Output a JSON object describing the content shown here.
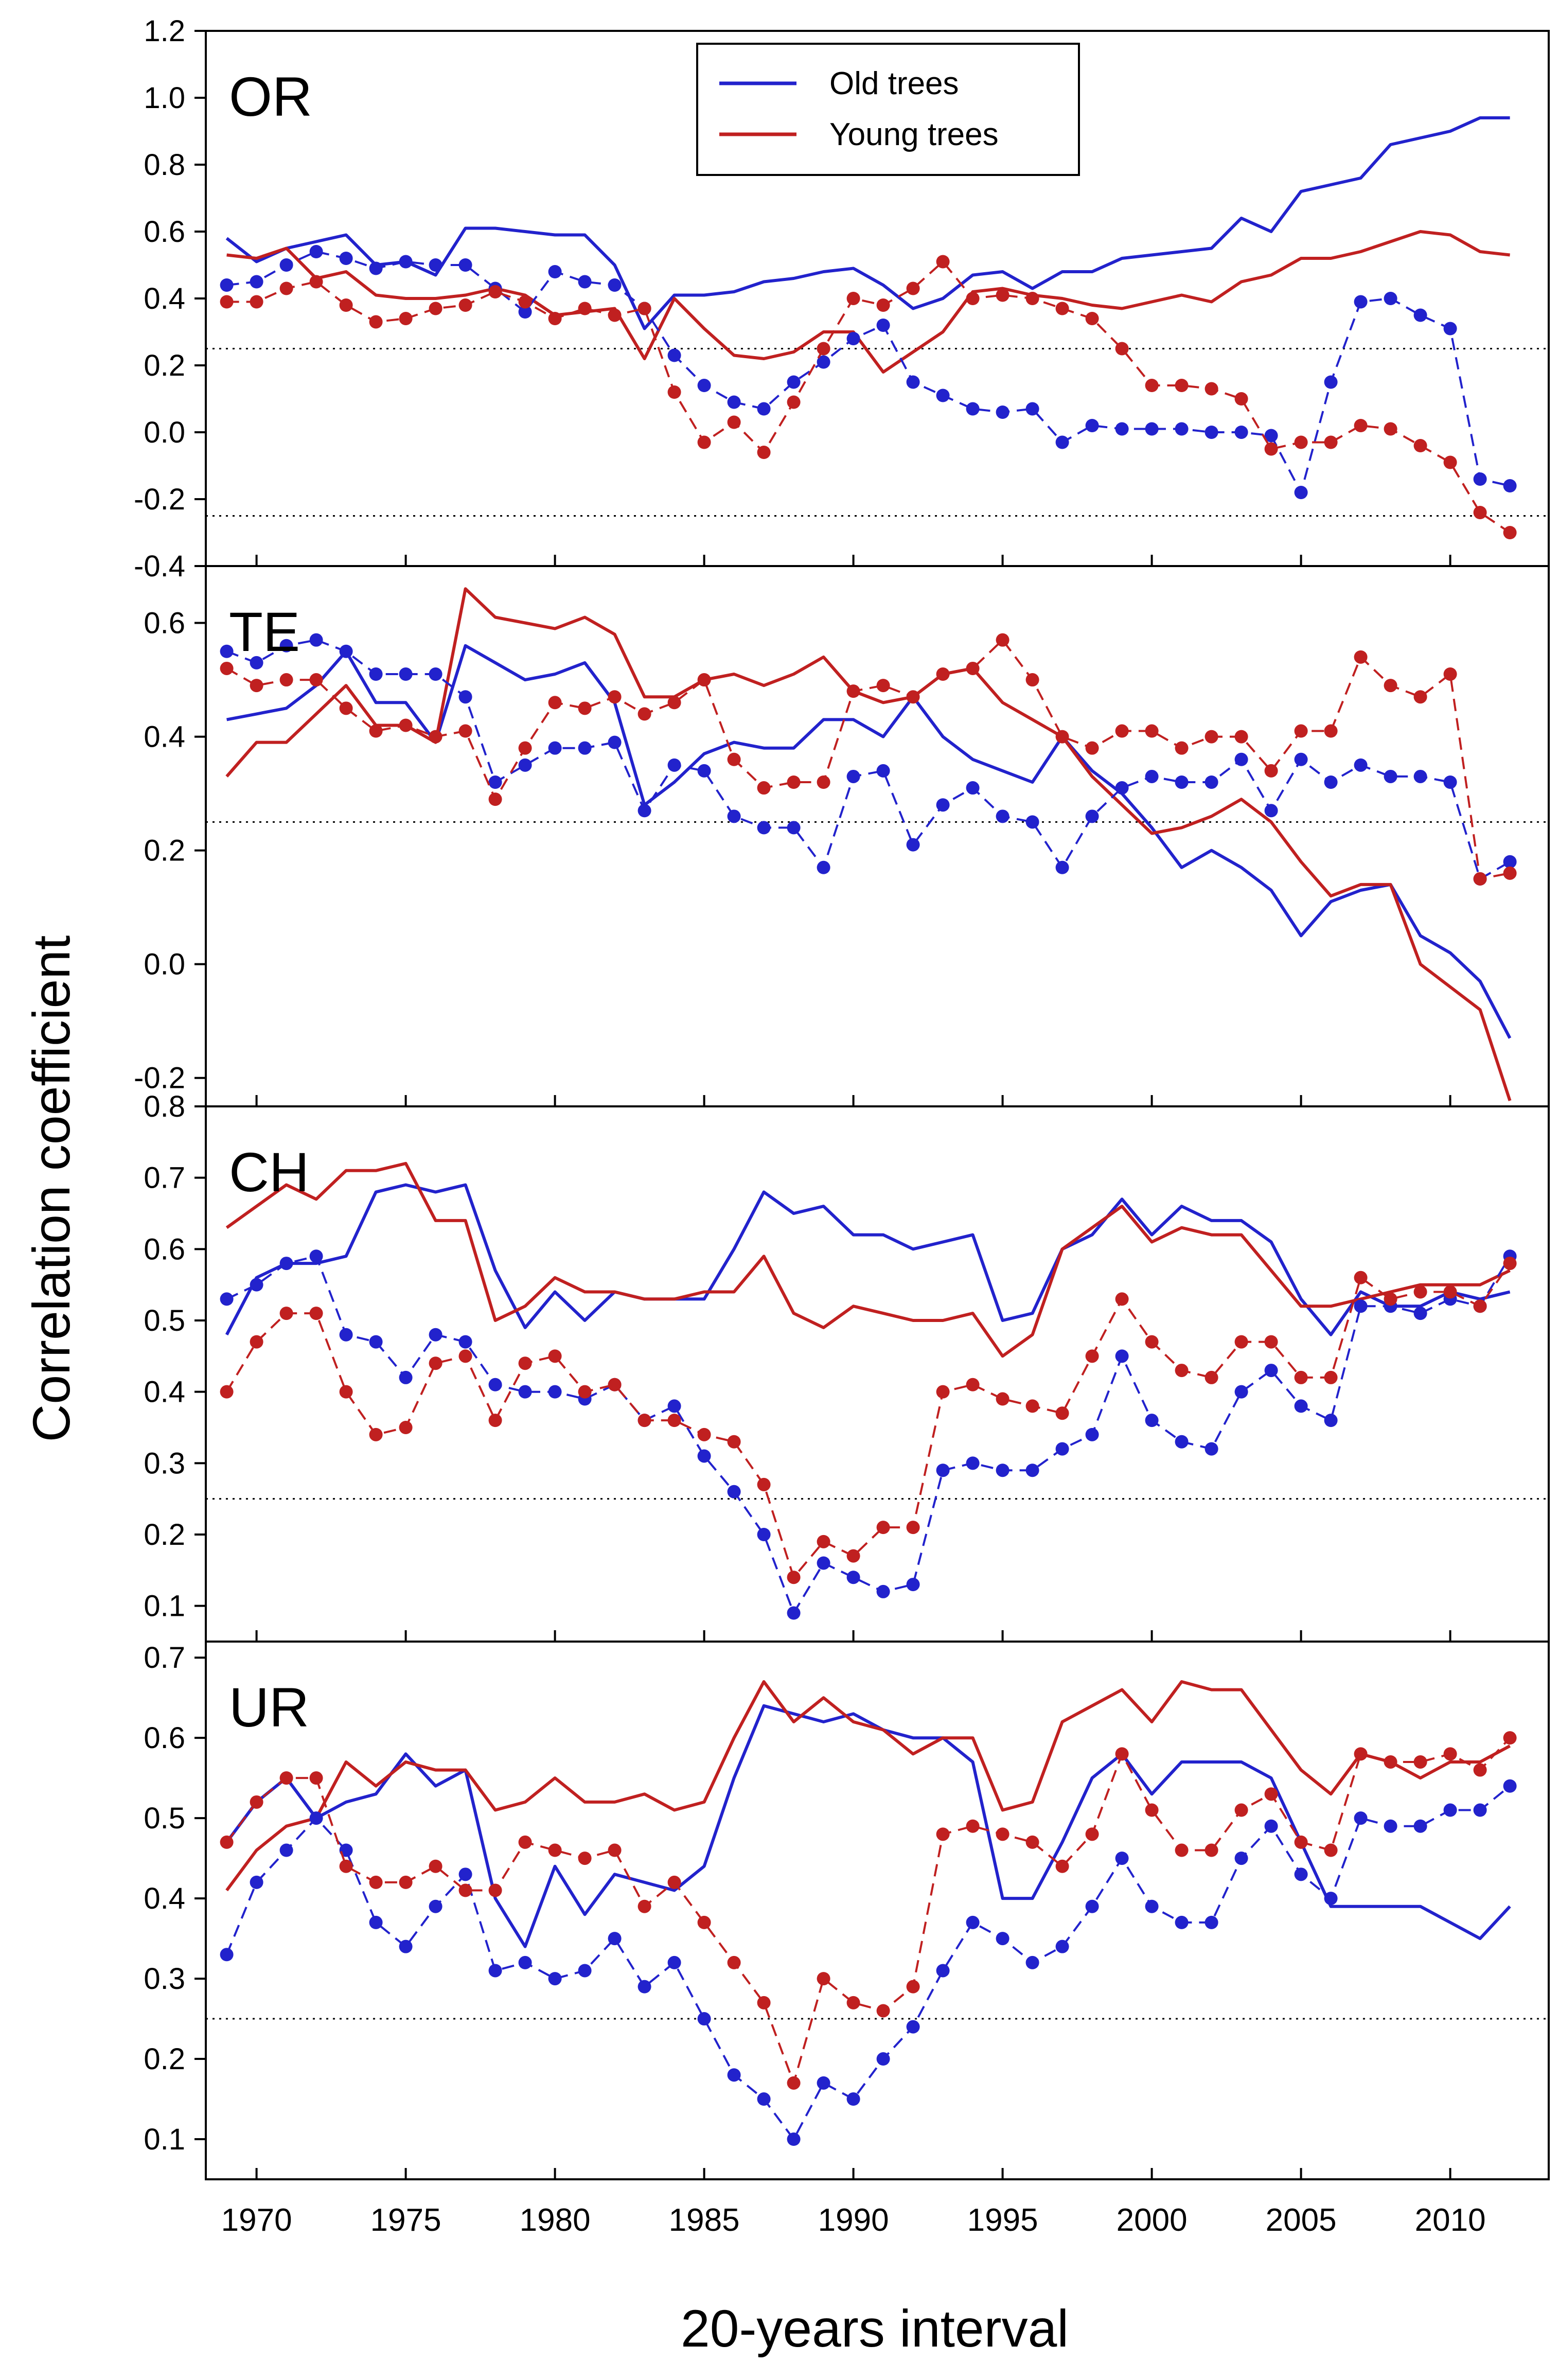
{
  "figure": {
    "ylabel": "Correlation coefficient",
    "xlabel": "20-years interval",
    "x_ticks": [
      1970,
      1975,
      1980,
      1985,
      1990,
      1995,
      2000,
      2005,
      2010
    ],
    "xlim": [
      1968.3,
      2013.3
    ],
    "threshold_lines": [
      0.25,
      -0.25
    ],
    "legend": [
      {
        "name": "Old trees",
        "color": "#2222cc"
      },
      {
        "name": "Young trees",
        "color": "#c02020"
      }
    ],
    "colors": {
      "old": "#2222cc",
      "young": "#c02020",
      "threshold": "#000000"
    }
  },
  "chart_data": [
    {
      "type": "line",
      "panel": "OR",
      "ylim": [
        -0.4,
        1.2
      ],
      "y_ticks": [
        -0.4,
        -0.2,
        0.0,
        0.2,
        0.4,
        0.6,
        0.8,
        1.0,
        1.2
      ],
      "y_tick_labels": [
        "-0.4",
        "-0.2",
        "0.0",
        "0.2",
        "0.4",
        "0.6",
        "0.8",
        "1.0",
        "1.2"
      ],
      "x": [
        1969,
        1970,
        1971,
        1972,
        1973,
        1974,
        1975,
        1976,
        1977,
        1978,
        1979,
        1980,
        1981,
        1982,
        1983,
        1984,
        1985,
        1986,
        1987,
        1988,
        1989,
        1990,
        1991,
        1992,
        1993,
        1994,
        1995,
        1996,
        1997,
        1998,
        1999,
        2000,
        2001,
        2002,
        2003,
        2004,
        2005,
        2006,
        2007,
        2008,
        2009,
        2010,
        2011,
        2012
      ],
      "series": [
        {
          "name": "Old trees solid",
          "group": "old",
          "style": "solid",
          "values": [
            0.58,
            0.51,
            0.55,
            0.57,
            0.59,
            0.5,
            0.51,
            0.47,
            0.61,
            0.61,
            0.6,
            0.59,
            0.59,
            0.5,
            0.31,
            0.41,
            0.41,
            0.42,
            0.45,
            0.46,
            0.48,
            0.49,
            0.44,
            0.37,
            0.4,
            0.47,
            0.48,
            0.43,
            0.48,
            0.48,
            0.52,
            0.53,
            0.54,
            0.55,
            0.64,
            0.6,
            0.72,
            0.74,
            0.76,
            0.86,
            0.88,
            0.9,
            0.94,
            0.94
          ]
        },
        {
          "name": "Old trees dashed",
          "group": "old",
          "style": "dashed",
          "values": [
            0.44,
            0.45,
            0.5,
            0.54,
            0.52,
            0.49,
            0.51,
            0.5,
            0.5,
            0.43,
            0.36,
            0.48,
            0.45,
            0.44,
            0.37,
            0.23,
            0.14,
            0.09,
            0.07,
            0.15,
            0.21,
            0.28,
            0.32,
            0.15,
            0.11,
            0.07,
            0.06,
            0.07,
            -0.03,
            0.02,
            0.01,
            0.01,
            0.01,
            0.0,
            0.0,
            -0.01,
            -0.18,
            0.15,
            0.39,
            0.4,
            0.35,
            0.31,
            -0.14,
            -0.16
          ]
        },
        {
          "name": "Young trees solid",
          "group": "young",
          "style": "solid",
          "values": [
            0.53,
            0.52,
            0.55,
            0.46,
            0.48,
            0.41,
            0.4,
            0.4,
            0.41,
            0.43,
            0.41,
            0.35,
            0.36,
            0.37,
            0.22,
            0.4,
            0.31,
            0.23,
            0.22,
            0.24,
            0.3,
            0.3,
            0.18,
            0.24,
            0.3,
            0.42,
            0.43,
            0.41,
            0.4,
            0.38,
            0.37,
            0.39,
            0.41,
            0.39,
            0.45,
            0.47,
            0.52,
            0.52,
            0.54,
            0.57,
            0.6,
            0.59,
            0.54,
            0.53
          ]
        },
        {
          "name": "Young trees dashed",
          "group": "young",
          "style": "dashed",
          "values": [
            0.39,
            0.39,
            0.43,
            0.45,
            0.38,
            0.33,
            0.34,
            0.37,
            0.38,
            0.42,
            0.39,
            0.34,
            0.37,
            0.35,
            0.37,
            0.12,
            -0.03,
            0.03,
            -0.06,
            0.09,
            0.25,
            0.4,
            0.38,
            0.43,
            0.51,
            0.4,
            0.41,
            0.4,
            0.37,
            0.34,
            0.25,
            0.14,
            0.14,
            0.13,
            0.1,
            -0.05,
            -0.03,
            -0.03,
            0.02,
            0.01,
            -0.04,
            -0.09,
            -0.24,
            -0.3
          ]
        }
      ]
    },
    {
      "type": "line",
      "panel": "TE",
      "ylim": [
        -0.25,
        0.7
      ],
      "y_ticks": [
        -0.2,
        0.0,
        0.2,
        0.4,
        0.6
      ],
      "y_tick_labels": [
        "-0.2",
        "0.0",
        "0.2",
        "0.4",
        "0.6"
      ],
      "x": [
        1969,
        1970,
        1971,
        1972,
        1973,
        1974,
        1975,
        1976,
        1977,
        1978,
        1979,
        1980,
        1981,
        1982,
        1983,
        1984,
        1985,
        1986,
        1987,
        1988,
        1989,
        1990,
        1991,
        1992,
        1993,
        1994,
        1995,
        1996,
        1997,
        1998,
        1999,
        2000,
        2001,
        2002,
        2003,
        2004,
        2005,
        2006,
        2007,
        2008,
        2009,
        2010,
        2011,
        2012
      ],
      "series": [
        {
          "name": "Old trees solid",
          "group": "old",
          "style": "solid",
          "values": [
            0.43,
            0.44,
            0.45,
            0.49,
            0.55,
            0.46,
            0.46,
            0.39,
            0.56,
            0.53,
            0.5,
            0.51,
            0.53,
            0.46,
            0.28,
            0.32,
            0.37,
            0.39,
            0.38,
            0.38,
            0.43,
            0.43,
            0.4,
            0.47,
            0.4,
            0.36,
            0.34,
            0.32,
            0.4,
            0.34,
            0.3,
            0.24,
            0.17,
            0.2,
            0.17,
            0.13,
            0.05,
            0.11,
            0.13,
            0.14,
            0.05,
            0.02,
            -0.03,
            -0.13
          ]
        },
        {
          "name": "Old trees dashed",
          "group": "old",
          "style": "dashed",
          "values": [
            0.55,
            0.53,
            0.56,
            0.57,
            0.55,
            0.51,
            0.51,
            0.51,
            0.47,
            0.32,
            0.35,
            0.38,
            0.38,
            0.39,
            0.27,
            0.35,
            0.34,
            0.26,
            0.24,
            0.24,
            0.17,
            0.33,
            0.34,
            0.21,
            0.28,
            0.31,
            0.26,
            0.25,
            0.17,
            0.26,
            0.31,
            0.33,
            0.32,
            0.32,
            0.36,
            0.27,
            0.36,
            0.32,
            0.35,
            0.33,
            0.33,
            0.32,
            0.15,
            0.18
          ]
        },
        {
          "name": "Young trees solid",
          "group": "young",
          "style": "solid",
          "values": [
            0.33,
            0.39,
            0.39,
            0.44,
            0.49,
            0.42,
            0.42,
            0.39,
            0.66,
            0.61,
            0.6,
            0.59,
            0.61,
            0.58,
            0.47,
            0.47,
            0.5,
            0.51,
            0.49,
            0.51,
            0.54,
            0.48,
            0.46,
            0.47,
            0.51,
            0.52,
            0.46,
            0.43,
            0.4,
            0.33,
            0.28,
            0.23,
            0.24,
            0.26,
            0.29,
            0.25,
            0.18,
            0.12,
            0.14,
            0.14,
            0.0,
            -0.04,
            -0.08,
            -0.24
          ]
        },
        {
          "name": "Young trees dashed",
          "group": "young",
          "style": "dashed",
          "values": [
            0.52,
            0.49,
            0.5,
            0.5,
            0.45,
            0.41,
            0.42,
            0.4,
            0.41,
            0.29,
            0.38,
            0.46,
            0.45,
            0.47,
            0.44,
            0.46,
            0.5,
            0.36,
            0.31,
            0.32,
            0.32,
            0.48,
            0.49,
            0.47,
            0.51,
            0.52,
            0.57,
            0.5,
            0.4,
            0.38,
            0.41,
            0.41,
            0.38,
            0.4,
            0.4,
            0.34,
            0.41,
            0.41,
            0.54,
            0.49,
            0.47,
            0.51,
            0.15,
            0.16
          ]
        }
      ]
    },
    {
      "type": "line",
      "panel": "CH",
      "ylim": [
        0.05,
        0.8
      ],
      "y_ticks": [
        0.1,
        0.2,
        0.3,
        0.4,
        0.5,
        0.6,
        0.7,
        0.8
      ],
      "y_tick_labels": [
        "0.1",
        "0.2",
        "0.3",
        "0.4",
        "0.5",
        "0.6",
        "0.7",
        "0.8"
      ],
      "x": [
        1969,
        1970,
        1971,
        1972,
        1973,
        1974,
        1975,
        1976,
        1977,
        1978,
        1979,
        1980,
        1981,
        1982,
        1983,
        1984,
        1985,
        1986,
        1987,
        1988,
        1989,
        1990,
        1991,
        1992,
        1993,
        1994,
        1995,
        1996,
        1997,
        1998,
        1999,
        2000,
        2001,
        2002,
        2003,
        2004,
        2005,
        2006,
        2007,
        2008,
        2009,
        2010,
        2011,
        2012
      ],
      "series": [
        {
          "name": "Old trees solid",
          "group": "old",
          "style": "solid",
          "values": [
            0.48,
            0.56,
            0.58,
            0.58,
            0.59,
            0.68,
            0.69,
            0.68,
            0.69,
            0.57,
            0.49,
            0.54,
            0.5,
            0.54,
            0.53,
            0.53,
            0.53,
            0.6,
            0.68,
            0.65,
            0.66,
            0.62,
            0.62,
            0.6,
            0.61,
            0.62,
            0.5,
            0.51,
            0.6,
            0.62,
            0.67,
            0.62,
            0.66,
            0.64,
            0.64,
            0.61,
            0.53,
            0.48,
            0.54,
            0.52,
            0.52,
            0.54,
            0.53,
            0.54
          ]
        },
        {
          "name": "Old trees dashed",
          "group": "old",
          "style": "dashed",
          "values": [
            0.53,
            0.55,
            0.58,
            0.59,
            0.48,
            0.47,
            0.42,
            0.48,
            0.47,
            0.41,
            0.4,
            0.4,
            0.39,
            0.41,
            0.36,
            0.38,
            0.31,
            0.26,
            0.2,
            0.09,
            0.16,
            0.14,
            0.12,
            0.13,
            0.29,
            0.3,
            0.29,
            0.29,
            0.32,
            0.34,
            0.45,
            0.36,
            0.33,
            0.32,
            0.4,
            0.43,
            0.38,
            0.36,
            0.52,
            0.52,
            0.51,
            0.53,
            0.52,
            0.59
          ]
        },
        {
          "name": "Young trees solid",
          "group": "young",
          "style": "solid",
          "values": [
            0.63,
            0.66,
            0.69,
            0.67,
            0.71,
            0.71,
            0.72,
            0.64,
            0.64,
            0.5,
            0.52,
            0.56,
            0.54,
            0.54,
            0.53,
            0.53,
            0.54,
            0.54,
            0.59,
            0.51,
            0.49,
            0.52,
            0.51,
            0.5,
            0.5,
            0.51,
            0.45,
            0.48,
            0.6,
            0.63,
            0.66,
            0.61,
            0.63,
            0.62,
            0.62,
            0.57,
            0.52,
            0.52,
            0.53,
            0.54,
            0.55,
            0.55,
            0.55,
            0.57
          ]
        },
        {
          "name": "Young trees dashed",
          "group": "young",
          "style": "dashed",
          "values": [
            0.4,
            0.47,
            0.51,
            0.51,
            0.4,
            0.34,
            0.35,
            0.44,
            0.45,
            0.36,
            0.44,
            0.45,
            0.4,
            0.41,
            0.36,
            0.36,
            0.34,
            0.33,
            0.27,
            0.14,
            0.19,
            0.17,
            0.21,
            0.21,
            0.4,
            0.41,
            0.39,
            0.38,
            0.37,
            0.45,
            0.53,
            0.47,
            0.43,
            0.42,
            0.47,
            0.47,
            0.42,
            0.42,
            0.56,
            0.53,
            0.54,
            0.54,
            0.52,
            0.58
          ]
        }
      ]
    },
    {
      "type": "line",
      "panel": "UR",
      "ylim": [
        0.05,
        0.72
      ],
      "y_ticks": [
        0.1,
        0.2,
        0.3,
        0.4,
        0.5,
        0.6,
        0.7
      ],
      "y_tick_labels": [
        "0.1",
        "0.2",
        "0.3",
        "0.4",
        "0.5",
        "0.6",
        "0.7"
      ],
      "x": [
        1969,
        1970,
        1971,
        1972,
        1973,
        1974,
        1975,
        1976,
        1977,
        1978,
        1979,
        1980,
        1981,
        1982,
        1983,
        1984,
        1985,
        1986,
        1987,
        1988,
        1989,
        1990,
        1991,
        1992,
        1993,
        1994,
        1995,
        1996,
        1997,
        1998,
        1999,
        2000,
        2001,
        2002,
        2003,
        2004,
        2005,
        2006,
        2007,
        2008,
        2009,
        2010,
        2011,
        2012
      ],
      "series": [
        {
          "name": "Old trees solid",
          "group": "old",
          "style": "solid",
          "values": [
            0.47,
            0.52,
            0.55,
            0.5,
            0.52,
            0.53,
            0.58,
            0.54,
            0.56,
            0.4,
            0.34,
            0.44,
            0.38,
            0.43,
            0.42,
            0.41,
            0.44,
            0.55,
            0.64,
            0.63,
            0.62,
            0.63,
            0.61,
            0.6,
            0.6,
            0.57,
            0.4,
            0.4,
            0.47,
            0.55,
            0.58,
            0.53,
            0.57,
            0.57,
            0.57,
            0.55,
            0.47,
            0.39,
            0.39,
            0.39,
            0.39,
            0.37,
            0.35,
            0.39
          ]
        },
        {
          "name": "Old trees dashed",
          "group": "old",
          "style": "dashed",
          "values": [
            0.33,
            0.42,
            0.46,
            0.5,
            0.46,
            0.37,
            0.34,
            0.39,
            0.43,
            0.31,
            0.32,
            0.3,
            0.31,
            0.35,
            0.29,
            0.32,
            0.25,
            0.18,
            0.15,
            0.1,
            0.17,
            0.15,
            0.2,
            0.24,
            0.31,
            0.37,
            0.35,
            0.32,
            0.34,
            0.39,
            0.45,
            0.39,
            0.37,
            0.37,
            0.45,
            0.49,
            0.43,
            0.4,
            0.5,
            0.49,
            0.49,
            0.51,
            0.51,
            0.54
          ]
        },
        {
          "name": "Young trees solid",
          "group": "young",
          "style": "solid",
          "values": [
            0.41,
            0.46,
            0.49,
            0.5,
            0.57,
            0.54,
            0.57,
            0.56,
            0.56,
            0.51,
            0.52,
            0.55,
            0.52,
            0.52,
            0.53,
            0.51,
            0.52,
            0.6,
            0.67,
            0.62,
            0.65,
            0.62,
            0.61,
            0.58,
            0.6,
            0.6,
            0.51,
            0.52,
            0.62,
            0.64,
            0.66,
            0.62,
            0.67,
            0.66,
            0.66,
            0.61,
            0.56,
            0.53,
            0.58,
            0.57,
            0.55,
            0.57,
            0.57,
            0.59
          ]
        },
        {
          "name": "Young trees dashed",
          "group": "young",
          "style": "dashed",
          "values": [
            0.47,
            0.52,
            0.55,
            0.55,
            0.44,
            0.42,
            0.42,
            0.44,
            0.41,
            0.41,
            0.47,
            0.46,
            0.45,
            0.46,
            0.39,
            0.42,
            0.37,
            0.32,
            0.27,
            0.17,
            0.3,
            0.27,
            0.26,
            0.29,
            0.48,
            0.49,
            0.48,
            0.47,
            0.44,
            0.48,
            0.58,
            0.51,
            0.46,
            0.46,
            0.51,
            0.53,
            0.47,
            0.46,
            0.58,
            0.57,
            0.57,
            0.58,
            0.56,
            0.6
          ]
        }
      ]
    }
  ]
}
